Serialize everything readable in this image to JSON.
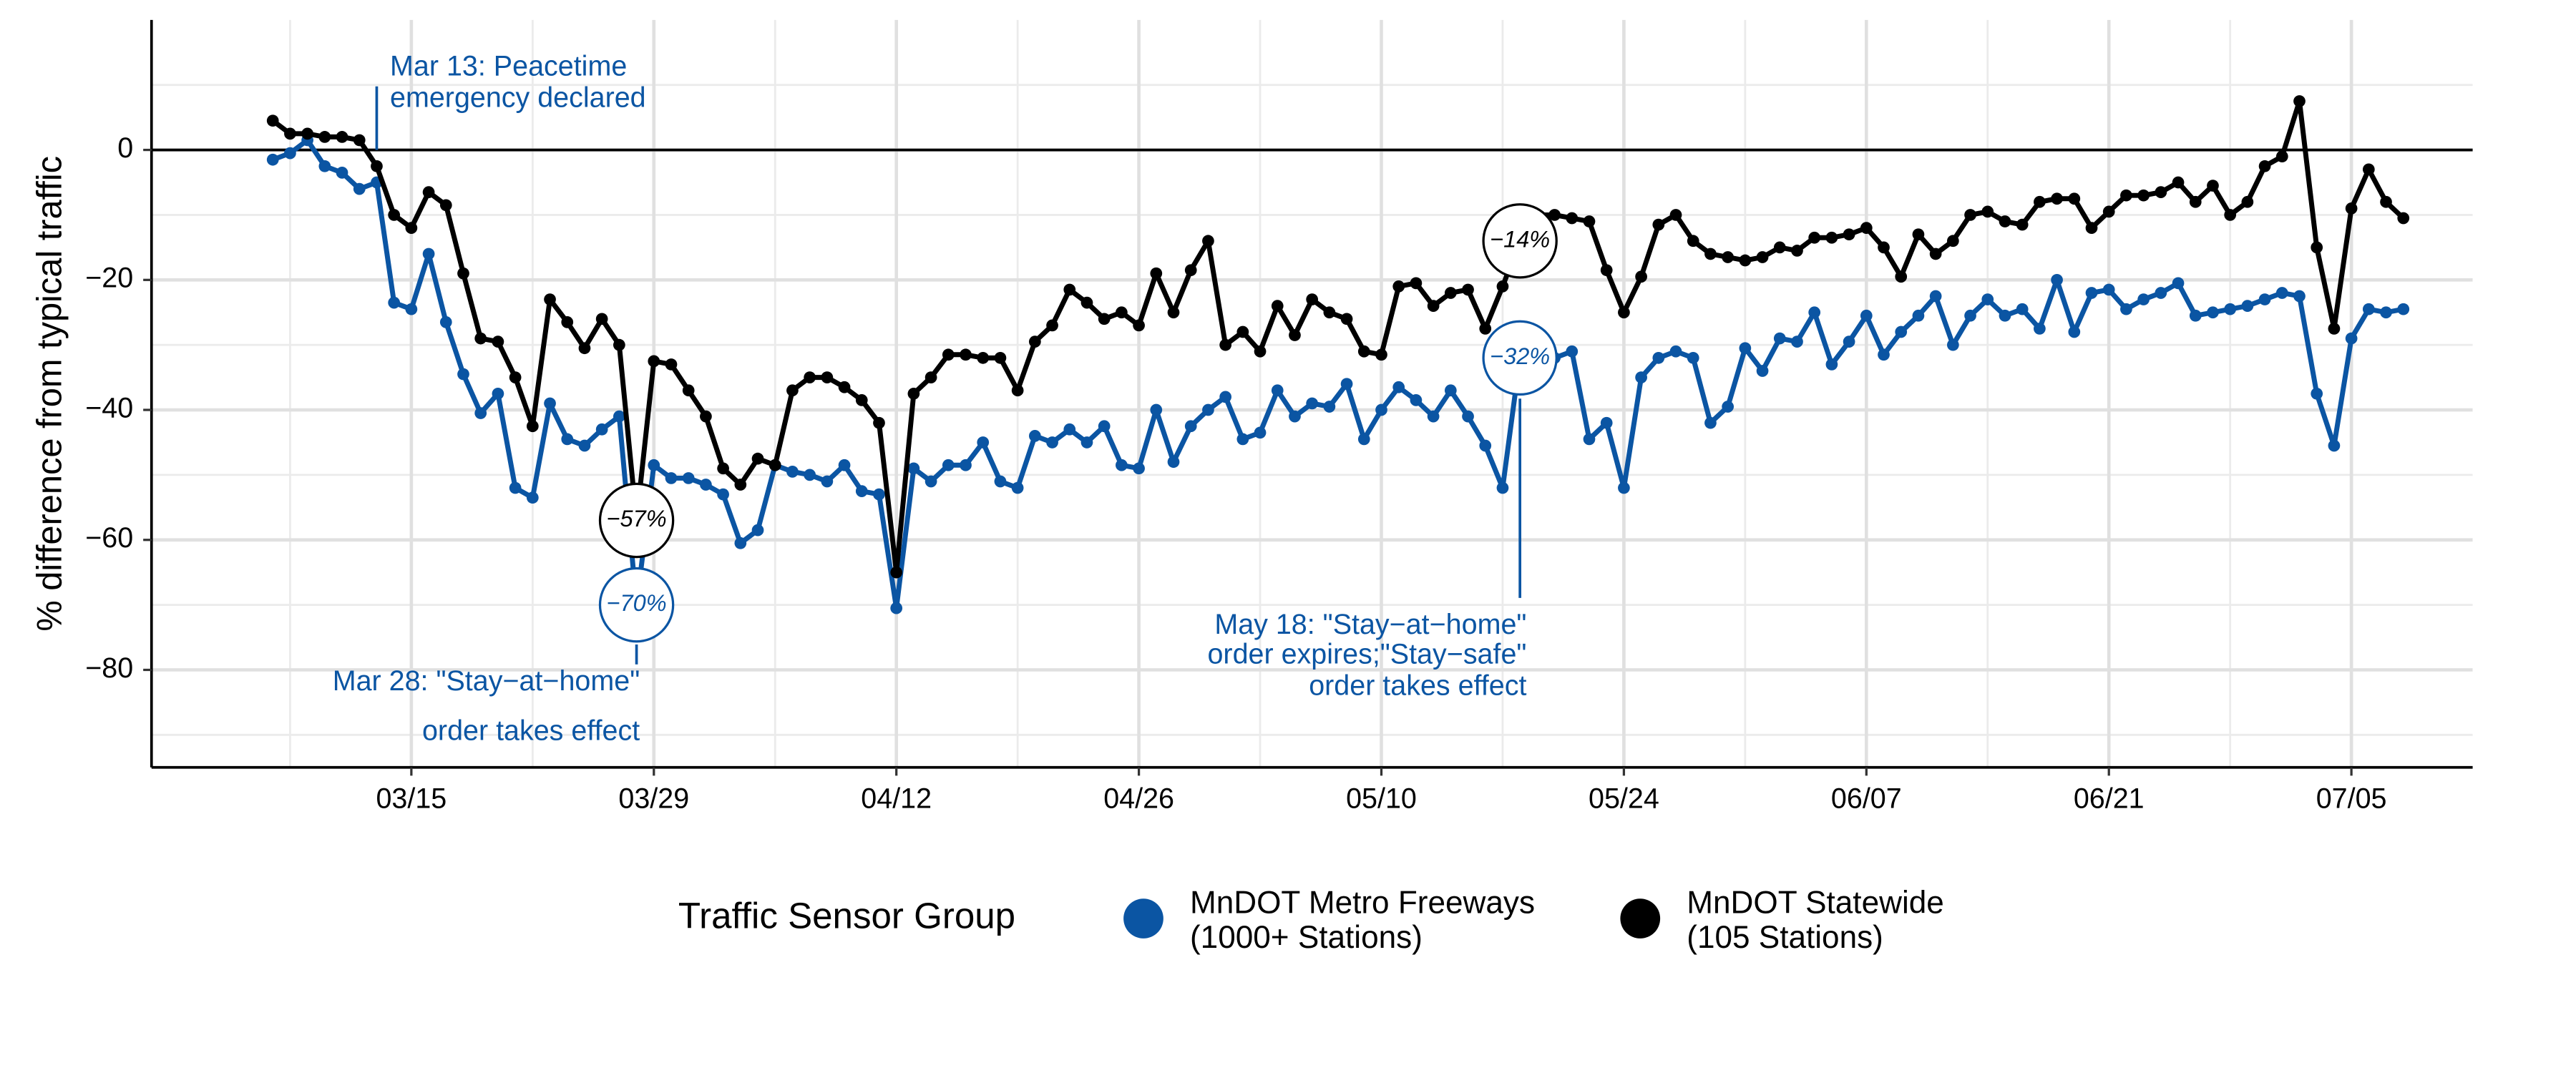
{
  "chart_data": {
    "type": "line",
    "ylabel": "% difference from typical traffic",
    "x": [
      "03/07",
      "03/08",
      "03/09",
      "03/10",
      "03/11",
      "03/12",
      "03/13",
      "03/14",
      "03/15",
      "03/16",
      "03/17",
      "03/18",
      "03/19",
      "03/20",
      "03/21",
      "03/22",
      "03/23",
      "03/24",
      "03/25",
      "03/26",
      "03/27",
      "03/28",
      "03/29",
      "03/30",
      "03/31",
      "04/01",
      "04/02",
      "04/03",
      "04/04",
      "04/05",
      "04/06",
      "04/07",
      "04/08",
      "04/09",
      "04/10",
      "04/11",
      "04/12",
      "04/13",
      "04/14",
      "04/15",
      "04/16",
      "04/17",
      "04/18",
      "04/19",
      "04/20",
      "04/21",
      "04/22",
      "04/23",
      "04/24",
      "04/25",
      "04/26",
      "04/27",
      "04/28",
      "04/29",
      "04/30",
      "05/01",
      "05/02",
      "05/03",
      "05/04",
      "05/05",
      "05/06",
      "05/07",
      "05/08",
      "05/09",
      "05/10",
      "05/11",
      "05/12",
      "05/13",
      "05/14",
      "05/15",
      "05/16",
      "05/17",
      "05/18",
      "05/19",
      "05/20",
      "05/21",
      "05/22",
      "05/23",
      "05/24",
      "05/25",
      "05/26",
      "05/27",
      "05/28",
      "05/29",
      "05/30",
      "05/31",
      "06/01",
      "06/02",
      "06/03",
      "06/04",
      "06/05",
      "06/06",
      "06/07",
      "06/08",
      "06/09",
      "06/10",
      "06/11",
      "06/12",
      "06/13",
      "06/14",
      "06/15",
      "06/16",
      "06/17",
      "06/18",
      "06/19",
      "06/20",
      "06/21",
      "06/22",
      "06/23",
      "06/24",
      "06/25",
      "06/26",
      "06/27",
      "06/28",
      "06/29",
      "06/30",
      "07/01",
      "07/02",
      "07/03",
      "07/04",
      "07/05",
      "07/06",
      "07/07",
      "07/08"
    ],
    "series": [
      {
        "name": "MnDOT Metro Freeways\n(1000+ Stations)",
        "color": "#0b55a3",
        "values": [
          -1.5,
          -0.5,
          1.5,
          -2.5,
          -3.5,
          -6,
          -5,
          -23.5,
          -24.5,
          -16,
          -26.5,
          -34.5,
          -40.5,
          -37.5,
          -52,
          -53.5,
          -39,
          -44.5,
          -45.5,
          -43,
          -41,
          -70,
          -48.5,
          -50.5,
          -50.5,
          -51.5,
          -53,
          -60.5,
          -58.5,
          -48.5,
          -49.5,
          -50,
          -51,
          -48.5,
          -52.5,
          -53,
          -70.5,
          -49,
          -51,
          -48.5,
          -48.5,
          -45,
          -51,
          -52,
          -44,
          -45,
          -43,
          -45,
          -42.5,
          -48.5,
          -49,
          -40,
          -48,
          -42.5,
          -40,
          -38,
          -44.5,
          -43.5,
          -37,
          -41,
          -39,
          -39.5,
          -36,
          -44.5,
          -40,
          -36.5,
          -38.5,
          -41,
          -37,
          -41,
          -45.5,
          -52,
          -32,
          -33.5,
          -32,
          -31,
          -44.5,
          -42,
          -52,
          -35,
          -32,
          -31,
          -32,
          -42,
          -39.5,
          -30.5,
          -34,
          -29,
          -29.5,
          -25,
          -33,
          -29.5,
          -25.5,
          -31.5,
          -28,
          -25.5,
          -22.5,
          -30,
          -25.5,
          -23,
          -25.5,
          -24.5,
          -27.5,
          -20,
          -28,
          -22,
          -21.5,
          -24.5,
          -23,
          -22,
          -20.5,
          -25.5,
          -25,
          -24.5,
          -24,
          -23,
          -22,
          -22.5,
          -37.5,
          -45.5,
          -29,
          -24.5,
          -25,
          -24.5
        ],
        "value_labels": [
          null,
          null,
          null,
          null,
          null,
          null,
          null,
          null,
          null,
          null,
          null,
          null,
          null,
          null,
          null,
          null,
          null,
          null,
          null,
          null,
          null,
          "−70%",
          null,
          null,
          null,
          null,
          null,
          null,
          null,
          null,
          null,
          null,
          null,
          null,
          null,
          null,
          null,
          null,
          null,
          null,
          null,
          null,
          null,
          null,
          null,
          null,
          null,
          null,
          null,
          null,
          null,
          null,
          null,
          null,
          null,
          null,
          null,
          null,
          null,
          null,
          null,
          null,
          null,
          null,
          null,
          null,
          null,
          null,
          null,
          null,
          null,
          null,
          "−32%",
          null,
          null,
          null,
          null,
          null,
          null,
          null,
          null,
          null,
          null,
          null,
          null,
          null,
          null,
          null,
          null,
          null,
          null,
          null,
          null,
          null,
          null,
          null,
          null,
          null,
          null,
          null,
          null,
          null,
          null,
          null,
          null,
          null,
          null,
          null,
          null,
          null,
          null,
          null,
          null,
          null,
          null,
          null,
          null,
          null,
          null,
          null,
          null,
          null,
          null,
          null
        ]
      },
      {
        "name": "MnDOT Statewide\n(105 Stations)",
        "color": "#000000",
        "values": [
          4.5,
          2.5,
          2.5,
          2,
          2,
          1.5,
          -2.5,
          -10,
          -12,
          -6.5,
          -8.5,
          -19,
          -29,
          -29.5,
          -35,
          -42.5,
          -23,
          -26.5,
          -30.5,
          -26,
          -30,
          -57,
          -32.5,
          -33,
          -37,
          -41,
          -49,
          -51.5,
          -47.5,
          -48.5,
          -37,
          -35,
          -35,
          -36.5,
          -38.5,
          -42,
          -65,
          -37.5,
          -35,
          -31.5,
          -31.5,
          -32,
          -32,
          -37,
          -29.5,
          -27,
          -21.5,
          -23.5,
          -26,
          -25,
          -27,
          -19,
          -25,
          -18.5,
          -14,
          -30,
          -28,
          -31,
          -24,
          -28.5,
          -23,
          -25,
          -26,
          -31,
          -31.5,
          -21,
          -20.5,
          -24,
          -22,
          -21.5,
          -27.5,
          -21,
          -14,
          -10,
          -10,
          -10.5,
          -11,
          -18.5,
          -25,
          -19.5,
          -11.5,
          -10,
          -14,
          -16,
          -16.5,
          -17,
          -16.5,
          -15,
          -15.5,
          -13.5,
          -13.5,
          -13,
          -12,
          -15,
          -19.5,
          -13,
          -16,
          -14,
          -10,
          -9.5,
          -11,
          -11.5,
          -8,
          -7.5,
          -7.5,
          -12,
          -9.5,
          -7,
          -7,
          -6.5,
          -5,
          -8,
          -5.5,
          -10,
          -8,
          -2.5,
          -1,
          7.5,
          -15,
          -27.5,
          -9,
          -3,
          -8,
          -10.5
        ],
        "value_labels": [
          null,
          null,
          null,
          null,
          null,
          null,
          null,
          null,
          null,
          null,
          null,
          null,
          null,
          null,
          null,
          null,
          null,
          null,
          null,
          null,
          null,
          "−57%",
          null,
          null,
          null,
          null,
          null,
          null,
          null,
          null,
          null,
          null,
          null,
          null,
          null,
          null,
          null,
          null,
          null,
          null,
          null,
          null,
          null,
          null,
          null,
          null,
          null,
          null,
          null,
          null,
          null,
          null,
          null,
          null,
          null,
          null,
          null,
          null,
          null,
          null,
          null,
          null,
          null,
          null,
          null,
          null,
          null,
          null,
          null,
          null,
          null,
          null,
          "−14%",
          null,
          null,
          null,
          null,
          null,
          null,
          null,
          null,
          null,
          null,
          null,
          null,
          null,
          null,
          null,
          null,
          null,
          null,
          null,
          null,
          null,
          null,
          null,
          null,
          null,
          null,
          null,
          null,
          null,
          null,
          null,
          null,
          null,
          null,
          null,
          null,
          null,
          null,
          null,
          null,
          null,
          null,
          null,
          null,
          null,
          null,
          null,
          null,
          null,
          null,
          null
        ]
      }
    ],
    "xlim": [
      "02/29",
      "07/12"
    ],
    "xticks": [
      "03/15",
      "03/29",
      "04/12",
      "04/26",
      "05/10",
      "05/24",
      "06/07",
      "06/21",
      "07/05"
    ],
    "minor_xticks": [
      "03/08",
      "03/22",
      "04/05",
      "04/19",
      "05/03",
      "05/17",
      "05/31",
      "06/14",
      "06/28"
    ],
    "ylim": [
      -95,
      20
    ],
    "yticks": [
      {
        "value": -80,
        "label": "−80"
      },
      {
        "value": -60,
        "label": "−60"
      },
      {
        "value": -40,
        "label": "−40"
      },
      {
        "value": -20,
        "label": "−20"
      },
      0
    ],
    "minor_yticks": [
      -90,
      -70,
      -50,
      -30,
      -10,
      10
    ],
    "hline": 0,
    "grid": true,
    "legend_title": "Traffic Sensor Group",
    "legend_position": "bottom",
    "annotations": [
      {
        "x": "03/13",
        "lines": [
          "Mar 13: Peacetime",
          "emergency declared"
        ]
      },
      {
        "x": "03/28",
        "lines": [
          "Mar 28: \"Stay−at−home\"",
          "order takes effect"
        ]
      },
      {
        "x": "05/18",
        "lines": [
          "May 18: \"Stay−at−home\"",
          "order expires;\"Stay−safe\"",
          "order takes effect"
        ]
      }
    ]
  }
}
